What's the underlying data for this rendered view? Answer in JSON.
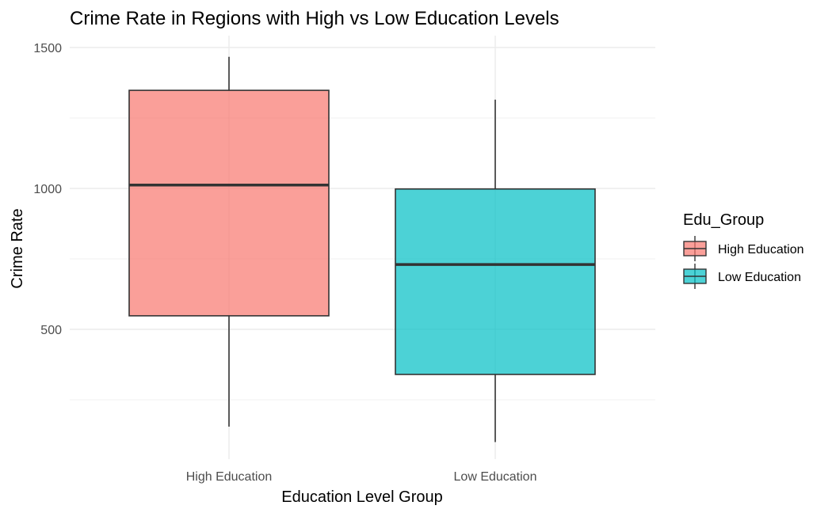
{
  "chart_data": {
    "type": "boxplot",
    "title": "Crime Rate in Regions with High vs Low Education Levels",
    "xlabel": "Education Level Group",
    "ylabel": "Crime Rate",
    "categories": [
      "High Education",
      "Low Education"
    ],
    "ylim": [
      60,
      1550
    ],
    "yticks": [
      500,
      1000,
      1500
    ],
    "grid": true,
    "legend": {
      "title": "Edu_Group",
      "placement": "right",
      "entries": [
        "High Education",
        "Low Education"
      ]
    },
    "series": [
      {
        "name": "High Education",
        "color": "#F8766D",
        "min": 155,
        "q1": 548,
        "median": 1012,
        "q3": 1348,
        "max": 1467
      },
      {
        "name": "Low Education",
        "color": "#00BFC4",
        "min": 100,
        "q1": 340,
        "median": 730,
        "q3": 998,
        "max": 1315
      }
    ]
  }
}
